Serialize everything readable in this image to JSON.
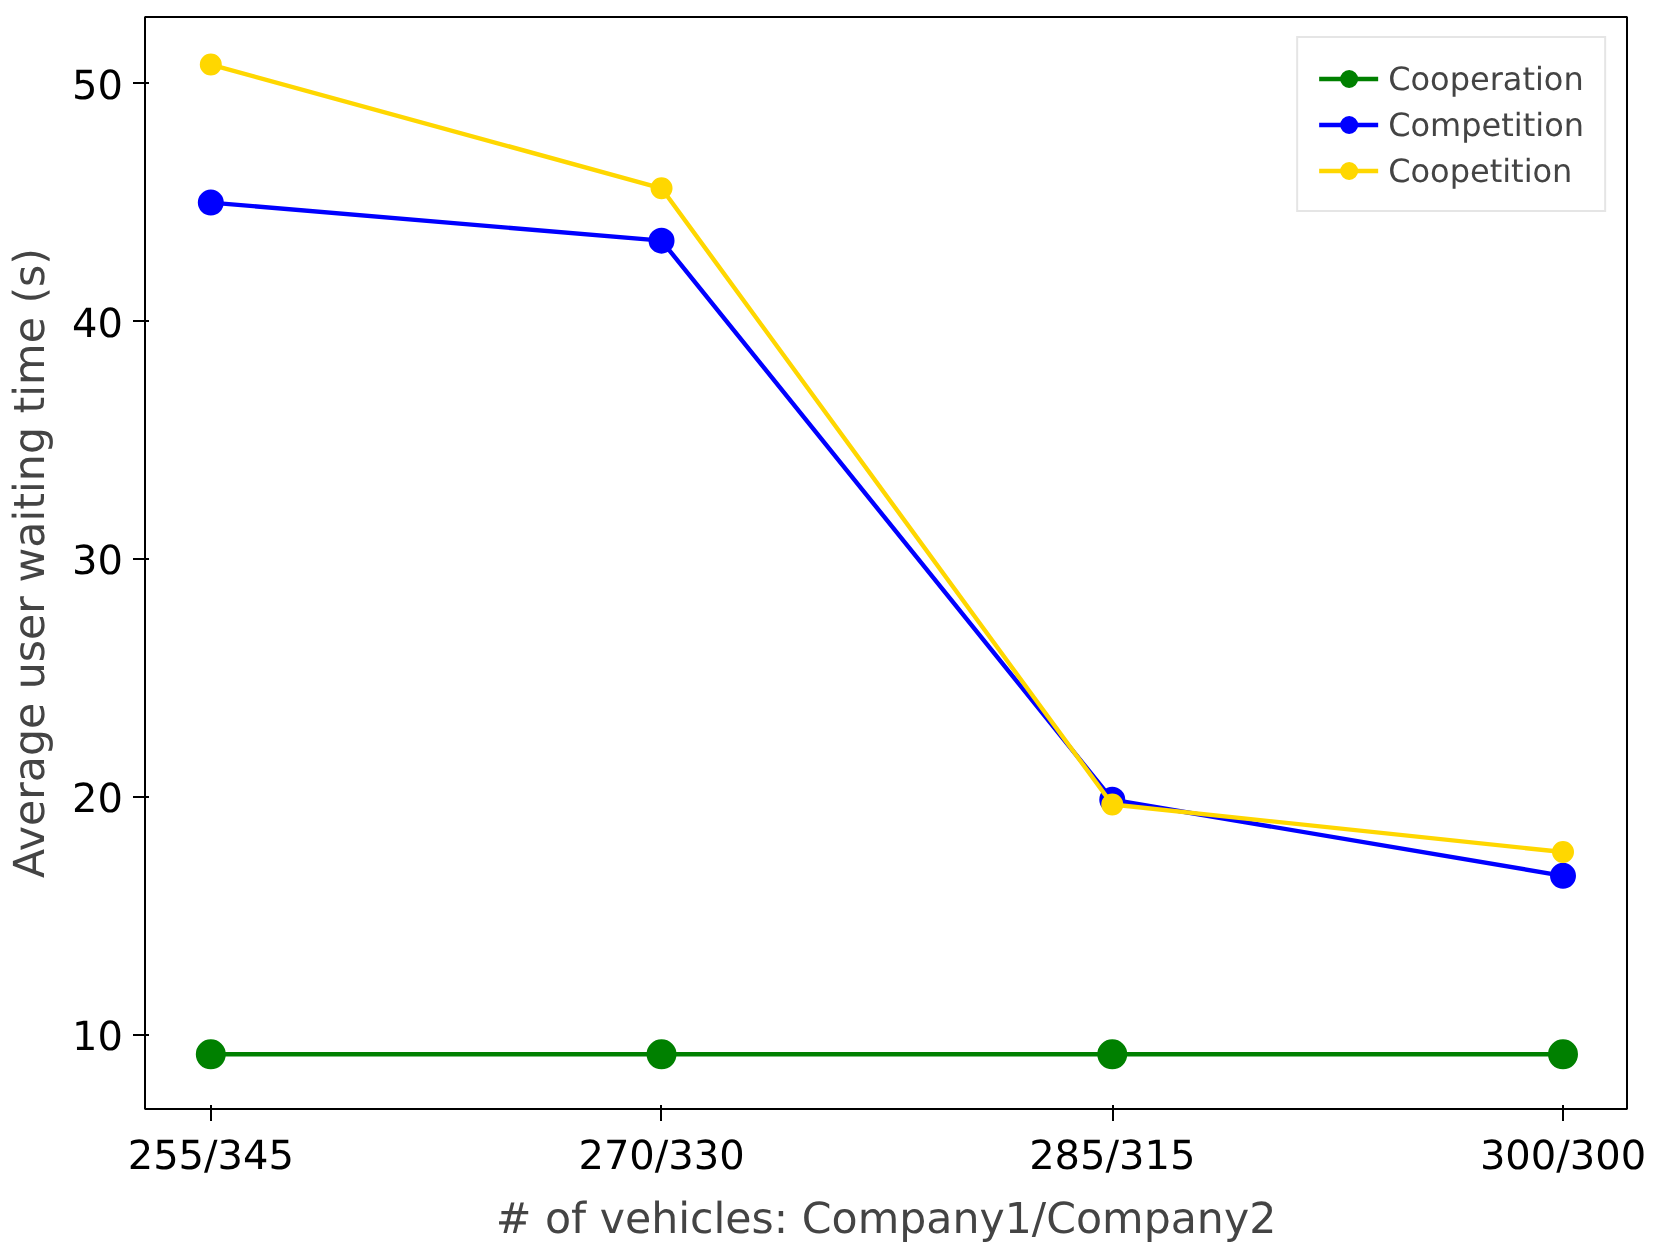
{
  "chart_data": {
    "type": "line",
    "xlabel": "# of vehicles: Company1/Company2",
    "ylabel": "Average user waiting time (s)",
    "categories": [
      "255/345",
      "270/330",
      "285/315",
      "300/300"
    ],
    "series": [
      {
        "name": "Cooperation",
        "color": "#008000",
        "values": [
          9.2,
          9.2,
          9.2,
          9.2
        ]
      },
      {
        "name": "Competition",
        "color": "#0000ff",
        "values": [
          45.0,
          43.4,
          19.9,
          16.7
        ]
      },
      {
        "name": "Coopetition",
        "color": "#ffd700",
        "values": [
          50.8,
          45.6,
          19.7,
          17.7
        ]
      }
    ],
    "ylim": [
      6.9,
      52.8
    ],
    "yticks": [
      10,
      20,
      30,
      40,
      50
    ],
    "grid": false,
    "legend": "top right",
    "marker": "circle",
    "line_style": "solid"
  }
}
